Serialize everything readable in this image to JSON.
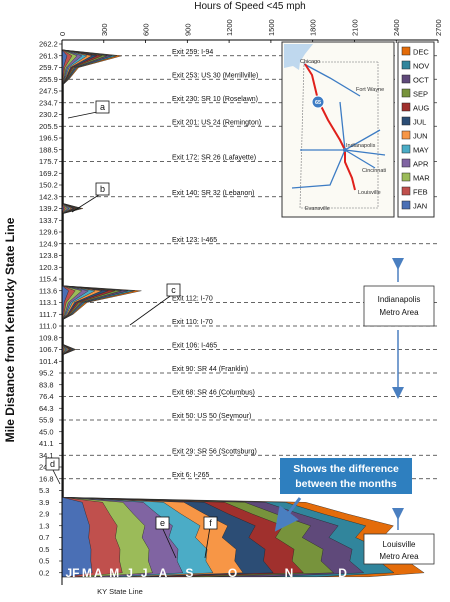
{
  "chart_data": {
    "type": "area",
    "title": "",
    "xlabel": "Hours of Speed <45 mph",
    "ylabel": "Mile Distance from Kentucky State Line",
    "xlim": [
      0,
      2700
    ],
    "xticks": [
      "0",
      "300",
      "600",
      "900",
      "1200",
      "1500",
      "1800",
      "2100",
      "2400",
      "2700"
    ],
    "yticks": [
      "262.2",
      "261.3",
      "259.7",
      "255.9",
      "247.5",
      "234.7",
      "230.2",
      "205.5",
      "196.5",
      "188.5",
      "175.7",
      "169.2",
      "150.2",
      "142.3",
      "139.2",
      "133.7",
      "129.6",
      "124.9",
      "123.8",
      "120.3",
      "115.4",
      "113.6",
      "113.1",
      "111.7",
      "111.0",
      "109.8",
      "106.7",
      "101.4",
      "95.2",
      "83.8",
      "76.4",
      "64.3",
      "55.9",
      "45.0",
      "41.1",
      "34.1",
      "24.1",
      "16.8",
      "5.3",
      "3.9",
      "2.9",
      "1.3",
      "0.7",
      "0.5",
      "0.5",
      "0.2"
    ],
    "bottom_label": "KY State Line",
    "exits": [
      {
        "label": "Exit 259: I-94",
        "tick_index": 1
      },
      {
        "label": "Exit 253: US 30 (Merrillville)",
        "tick_index": 3
      },
      {
        "label": "Exit 230: SR 10 (Roselawn)",
        "tick_index": 5
      },
      {
        "label": "Exit 201: US 24 (Remington)",
        "tick_index": 7
      },
      {
        "label": "Exit 172: SR 26 (Lafayette)",
        "tick_index": 10
      },
      {
        "label": "Exit 140: SR 32 (Lebanon)",
        "tick_index": 13
      },
      {
        "label": "Exit 123: I-465",
        "tick_index": 17
      },
      {
        "label": "Exit 112: I-70",
        "tick_index": 22
      },
      {
        "label": "Exit 110: I-70",
        "tick_index": 24
      },
      {
        "label": "Exit 106: I-465",
        "tick_index": 26
      },
      {
        "label": "Exit 90: SR 44 (Franklin)",
        "tick_index": 28
      },
      {
        "label": "Exit 68: SR 46 (Columbus)",
        "tick_index": 30
      },
      {
        "label": "Exit 50: US 50 (Seymour)",
        "tick_index": 32
      },
      {
        "label": "Exit 29: SR 56 (Scottsburg)",
        "tick_index": 35
      },
      {
        "label": "Exit 6: I-265",
        "tick_index": 37
      }
    ],
    "legend": [
      "DEC",
      "NOV",
      "OCT",
      "SEP",
      "AUG",
      "JUL",
      "JUN",
      "MAY",
      "APR",
      "MAR",
      "FEB",
      "JAN"
    ],
    "legend_placement": "top-right",
    "series": [
      {
        "name": "JAN",
        "color": "#4a6fb5"
      },
      {
        "name": "FEB",
        "color": "#c0504d"
      },
      {
        "name": "MAR",
        "color": "#9bbb59"
      },
      {
        "name": "APR",
        "color": "#8064a2"
      },
      {
        "name": "MAY",
        "color": "#4bacc6"
      },
      {
        "name": "JUN",
        "color": "#f79646"
      },
      {
        "name": "JUL",
        "color": "#2c4d75"
      },
      {
        "name": "AUG",
        "color": "#a0302d"
      },
      {
        "name": "SEP",
        "color": "#77933c"
      },
      {
        "name": "OCT",
        "color": "#5f497a"
      },
      {
        "name": "NOV",
        "color": "#31859c"
      },
      {
        "name": "DEC",
        "color": "#e46c0a"
      }
    ],
    "month_labels": [
      "J",
      "F",
      "M",
      "A",
      "M",
      "J",
      "J",
      "A",
      "S",
      "O",
      "N",
      "D"
    ],
    "month_peaks": [
      40,
      100,
      200,
      320,
      430,
      540,
      640,
      810,
      1020,
      1430,
      1830,
      2200
    ],
    "profile": [
      {
        "tick_index": 1,
        "total": 430
      },
      {
        "tick_index": 2,
        "total": 120
      },
      {
        "tick_index": 3,
        "total": 50
      },
      {
        "tick_index": 14,
        "total": 150
      },
      {
        "tick_index": 21,
        "total": 570
      },
      {
        "tick_index": 22,
        "total": 180
      },
      {
        "tick_index": 23,
        "total": 80
      },
      {
        "tick_index": 26,
        "total": 100
      },
      {
        "tick_index": 39,
        "total": 1750
      },
      {
        "tick_index": 40,
        "total": 2050
      },
      {
        "tick_index": 41,
        "total": 2380
      },
      {
        "tick_index": 42,
        "total": 2300
      },
      {
        "tick_index": 43,
        "total": 2500
      },
      {
        "tick_index": 44,
        "total": 2480
      },
      {
        "tick_index": 45,
        "total": 2600
      }
    ],
    "callouts": [
      "a",
      "b",
      "c",
      "d",
      "e",
      "f"
    ],
    "annotation": "Shows the difference between the months",
    "metro_areas": [
      "Indianapolis Metro Area",
      "Louisville Metro Area"
    ],
    "map_labels": [
      "Chicago",
      "Fort Wayne",
      "Indianapolis",
      "Cincinnati",
      "Louisville",
      "Evansville",
      "65"
    ]
  },
  "colors": {
    "annotation_box": "#2e7fbf",
    "arrow": "#4a7fc0",
    "route": "#e0201b"
  }
}
